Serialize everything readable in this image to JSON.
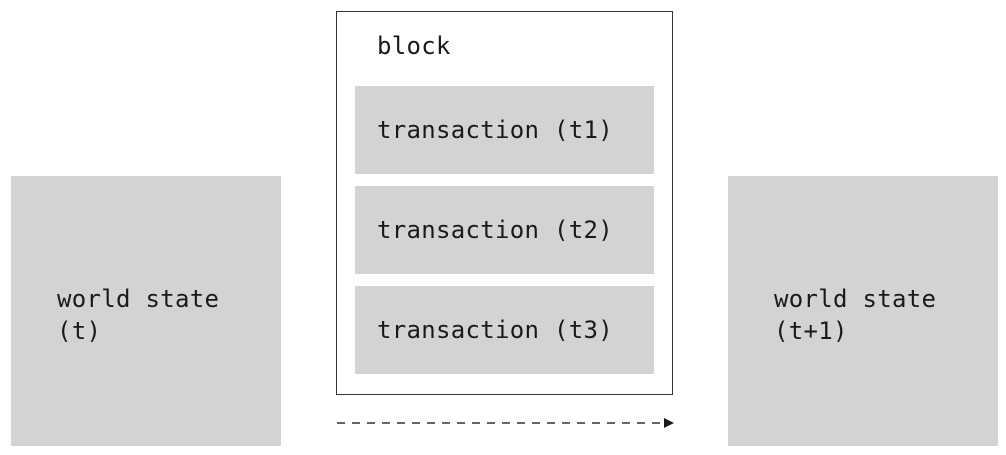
{
  "world_state_before": {
    "line1": "world state",
    "line2": "(t)"
  },
  "block": {
    "label": "block",
    "transactions": [
      {
        "label": "transaction (t1)"
      },
      {
        "label": "transaction (t2)"
      },
      {
        "label": "transaction (t3)"
      }
    ]
  },
  "world_state_after": {
    "line1": "world state",
    "line2": "(t+1)"
  },
  "colors": {
    "box_fill": "#d3d3d3",
    "border": "#333333",
    "text": "#1a1a1a"
  }
}
